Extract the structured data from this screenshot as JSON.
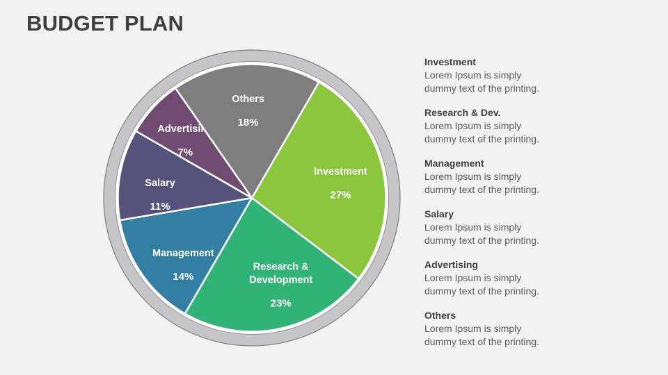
{
  "slide": {
    "title": "BUDGET PLAN",
    "background_color": "#f2f2f2",
    "title_color": "#3f3f3f"
  },
  "chart_data": {
    "type": "pie",
    "title": "Budget Plan",
    "start_angle_deg": 30,
    "legend_position": "right",
    "ring_fill": "#c6c6c8",
    "ring_stroke": "#7f7f7f",
    "gap_fill": "#ffffff",
    "gap_stroke": "#8f8f8f",
    "slice_border": "#ffffff",
    "label_color": "#ffffff",
    "slices": [
      {
        "label": "Investment",
        "label_lines": [
          "Investment"
        ],
        "value": 27,
        "pct_label": "27%",
        "color": "#8cc63e",
        "label_offset": [
          0,
          4
        ]
      },
      {
        "label": "Research & Development",
        "label_lines": [
          "Research &",
          "Development"
        ],
        "value": 23,
        "pct_label": "23%",
        "color": "#31b377",
        "label_offset": [
          16,
          0
        ]
      },
      {
        "label": "Management",
        "label_lines": [
          "Management"
        ],
        "value": 14,
        "pct_label": "14%",
        "color": "#337fa4",
        "label_offset": [
          8,
          22
        ]
      },
      {
        "label": "Salary",
        "label_lines": [
          "Salary"
        ],
        "value": 11,
        "pct_label": "11%",
        "color": "#55517a",
        "label_offset": [
          -4,
          18
        ]
      },
      {
        "label": "Advertising",
        "label_lines": [
          "Advertising"
        ],
        "value": 7,
        "pct_label": "7%",
        "color": "#6f4b72",
        "label_offset": [
          0,
          5
        ]
      },
      {
        "label": "Others",
        "label_lines": [
          "Others"
        ],
        "value": 18,
        "pct_label": "18%",
        "color": "#7e7e7e",
        "label_offset": [
          0,
          4
        ]
      }
    ]
  },
  "legend": {
    "items": [
      {
        "heading": "Investment",
        "line1": "Lorem Ipsum is simply",
        "line2": "dummy text of the printing."
      },
      {
        "heading": "Research & Dev.",
        "line1": "Lorem Ipsum is simply",
        "line2": "dummy text of the printing."
      },
      {
        "heading": "Management",
        "line1": "Lorem Ipsum is simply",
        "line2": "dummy text of the printing."
      },
      {
        "heading": "Salary",
        "line1": "Lorem Ipsum is simply",
        "line2": "dummy text of the printing."
      },
      {
        "heading": "Advertising",
        "line1": "Lorem Ipsum is simply",
        "line2": "dummy text of the printing."
      },
      {
        "heading": "Others",
        "line1": "Lorem Ipsum is simply",
        "line2": "dummy text of the printing."
      }
    ]
  }
}
